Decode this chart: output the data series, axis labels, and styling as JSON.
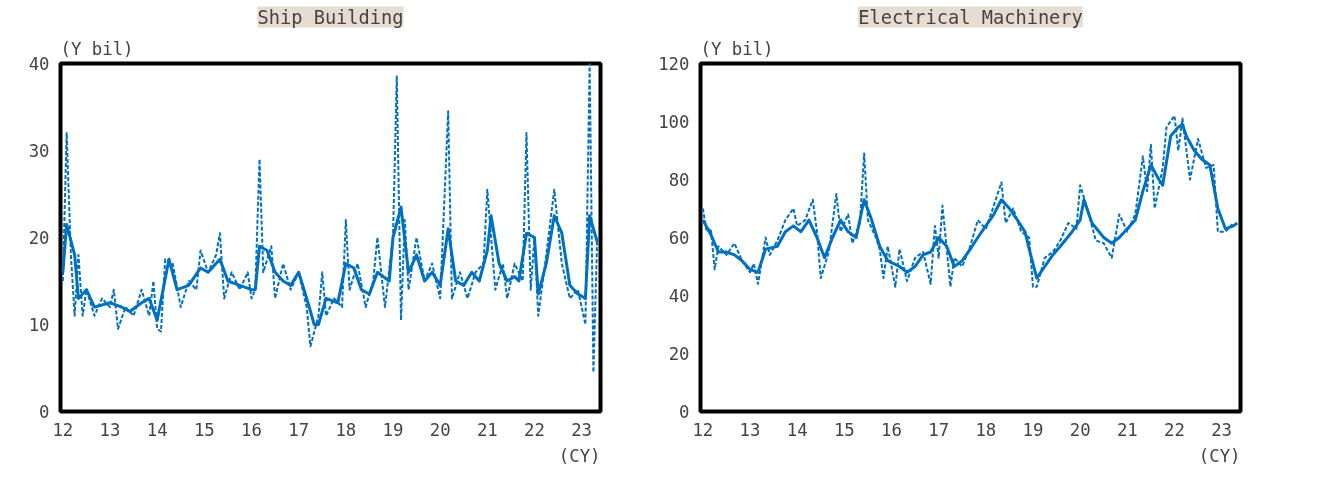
{
  "chart_data": [
    {
      "type": "line",
      "title": "Ship Building",
      "ylabel": "(Y bil)",
      "xlabel": "(CY)",
      "xlim": [
        11.95,
        23.4
      ],
      "xticks": [
        12,
        13,
        14,
        15,
        16,
        17,
        18,
        19,
        20,
        21,
        22,
        23
      ],
      "ylim": [
        0,
        40
      ],
      "yticks": [
        0,
        10,
        20,
        30,
        40
      ],
      "grid": false,
      "series": [
        {
          "color": "#0070c0",
          "line_style": "dashed",
          "x": [
            12.0,
            12.08,
            12.17,
            12.25,
            12.33,
            12.42,
            12.5,
            12.67,
            12.83,
            13.0,
            13.08,
            13.17,
            13.33,
            13.5,
            13.67,
            13.83,
            13.92,
            14.0,
            14.08,
            14.17,
            14.33,
            14.5,
            14.67,
            14.83,
            14.92,
            15.08,
            15.25,
            15.33,
            15.42,
            15.58,
            15.75,
            15.92,
            16.0,
            16.08,
            16.17,
            16.25,
            16.42,
            16.5,
            16.67,
            16.83,
            17.0,
            17.17,
            17.25,
            17.42,
            17.5,
            17.58,
            17.75,
            17.92,
            18.0,
            18.08,
            18.25,
            18.42,
            18.58,
            18.67,
            18.83,
            19.0,
            19.08,
            19.17,
            19.25,
            19.33,
            19.5,
            19.67,
            19.83,
            20.0,
            20.17,
            20.25,
            20.42,
            20.58,
            20.75,
            20.92,
            21.0,
            21.17,
            21.33,
            21.42,
            21.58,
            21.75,
            21.83,
            21.92,
            22.0,
            22.08,
            22.25,
            22.42,
            22.58,
            22.75,
            22.92,
            23.08,
            23.17,
            23.25,
            23.33
          ],
          "values": [
            15,
            32,
            18,
            11,
            18,
            11,
            14,
            11,
            13,
            12,
            14,
            9.5,
            12,
            11,
            14,
            11,
            15,
            9.5,
            9.2,
            17.5,
            17,
            12,
            15,
            14,
            18.5,
            16,
            18,
            20.5,
            13,
            16,
            14,
            16,
            13,
            14,
            29,
            16,
            19,
            13,
            17,
            14,
            16,
            12,
            7.5,
            11,
            16,
            11,
            13,
            12,
            22,
            14,
            17,
            12,
            15,
            20,
            12,
            20,
            38.5,
            10.5,
            22,
            14,
            20,
            15,
            17,
            13,
            34.5,
            13,
            16,
            13,
            16,
            17,
            25.5,
            14,
            17,
            13,
            17,
            15,
            32,
            14,
            20,
            11,
            18,
            25.5,
            17,
            13,
            14,
            10,
            40,
            4.5,
            20
          ]
        },
        {
          "color": "#0070c0",
          "line_style": "solid",
          "x": [
            12.0,
            12.08,
            12.25,
            12.33,
            12.5,
            12.67,
            13.0,
            13.25,
            13.42,
            13.67,
            13.83,
            14.0,
            14.25,
            14.42,
            14.67,
            14.92,
            15.08,
            15.33,
            15.5,
            15.75,
            16.0,
            16.08,
            16.17,
            16.33,
            16.5,
            16.67,
            16.83,
            17.0,
            17.17,
            17.33,
            17.42,
            17.58,
            17.83,
            18.0,
            18.17,
            18.33,
            18.5,
            18.67,
            18.92,
            19.0,
            19.17,
            19.33,
            19.5,
            19.67,
            19.83,
            20.0,
            20.17,
            20.33,
            20.5,
            20.67,
            20.83,
            21.0,
            21.08,
            21.25,
            21.42,
            21.58,
            21.67,
            21.83,
            22.0,
            22.08,
            22.25,
            22.42,
            22.58,
            22.75,
            22.92,
            23.08,
            23.17,
            23.33
          ],
          "values": [
            16,
            21.5,
            18,
            13,
            14,
            12,
            12.5,
            12,
            11.5,
            12.5,
            13,
            10.5,
            17.5,
            14,
            14.5,
            16.5,
            16,
            17.5,
            15,
            14.5,
            14,
            14,
            19,
            18.5,
            16,
            15,
            14.5,
            16,
            13,
            10,
            10,
            13,
            12.5,
            17,
            16.5,
            14,
            13.5,
            16,
            15,
            20,
            23.5,
            16,
            18,
            15,
            16,
            14.5,
            21,
            15,
            14.5,
            16,
            15,
            18.5,
            22.5,
            17,
            15,
            15.5,
            15,
            20.5,
            20,
            13.5,
            17,
            22.5,
            20.5,
            14.5,
            13.5,
            13,
            22.5,
            19.5
          ]
        }
      ]
    },
    {
      "type": "line",
      "title": "Electrical Machinery",
      "ylabel": "(Y bil)",
      "xlabel": "(CY)",
      "xlim": [
        11.95,
        23.4
      ],
      "xticks": [
        12,
        13,
        14,
        15,
        16,
        17,
        18,
        19,
        20,
        21,
        22,
        23
      ],
      "ylim": [
        0,
        120
      ],
      "yticks": [
        0,
        20,
        40,
        60,
        80,
        100,
        120
      ],
      "grid": false,
      "series": [
        {
          "color": "#0070c0",
          "line_style": "dashed",
          "x": [
            12.0,
            12.08,
            12.17,
            12.25,
            12.33,
            12.5,
            12.67,
            12.83,
            13.0,
            13.08,
            13.17,
            13.33,
            13.42,
            13.58,
            13.75,
            13.92,
            14.0,
            14.17,
            14.33,
            14.42,
            14.5,
            14.67,
            14.83,
            14.92,
            15.08,
            15.17,
            15.33,
            15.42,
            15.5,
            15.67,
            15.75,
            15.83,
            15.92,
            16.08,
            16.17,
            16.33,
            16.5,
            16.67,
            16.83,
            16.92,
            17.0,
            17.08,
            17.25,
            17.33,
            17.5,
            17.67,
            17.83,
            18.0,
            18.17,
            18.33,
            18.42,
            18.58,
            18.75,
            18.92,
            19.0,
            19.08,
            19.25,
            19.42,
            19.58,
            19.75,
            19.92,
            20.0,
            20.17,
            20.33,
            20.5,
            20.67,
            20.83,
            21.0,
            21.17,
            21.33,
            21.42,
            21.5,
            21.58,
            21.75,
            21.83,
            22.0,
            22.08,
            22.17,
            22.33,
            22.5,
            22.67,
            22.83,
            22.92,
            23.08,
            23.25
          ],
          "values": [
            70,
            62,
            63,
            49,
            57,
            54,
            58,
            52,
            48,
            51,
            44,
            60,
            54,
            59,
            66,
            70,
            64,
            66,
            73,
            62,
            46,
            55,
            75,
            62,
            68,
            58,
            65,
            89,
            66,
            60,
            56,
            46,
            57,
            43,
            56,
            45,
            53,
            55,
            44,
            64,
            53,
            71,
            43,
            53,
            50,
            57,
            66,
            63,
            71,
            79,
            65,
            70,
            62,
            60,
            43,
            43,
            53,
            55,
            59,
            65,
            63,
            78,
            69,
            59,
            58,
            53,
            68,
            62,
            68,
            88,
            76,
            92,
            70,
            84,
            98,
            102,
            90,
            101,
            80,
            94,
            84,
            85,
            62,
            62,
            65
          ]
        },
        {
          "color": "#0070c0",
          "line_style": "solid",
          "x": [
            12.0,
            12.17,
            12.33,
            12.5,
            12.67,
            12.83,
            13.0,
            13.17,
            13.33,
            13.58,
            13.75,
            13.92,
            14.08,
            14.25,
            14.42,
            14.58,
            14.75,
            14.92,
            15.08,
            15.25,
            15.42,
            15.58,
            15.75,
            15.92,
            16.17,
            16.33,
            16.5,
            16.67,
            16.83,
            17.0,
            17.17,
            17.33,
            17.5,
            17.67,
            17.83,
            18.0,
            18.17,
            18.33,
            18.5,
            18.67,
            18.83,
            18.92,
            19.08,
            19.25,
            19.42,
            19.58,
            19.83,
            20.0,
            20.08,
            20.25,
            20.5,
            20.67,
            20.83,
            21.0,
            21.17,
            21.33,
            21.5,
            21.67,
            21.75,
            21.92,
            22.08,
            22.17,
            22.25,
            22.42,
            22.58,
            22.75,
            22.92,
            23.08,
            23.25,
            23.33
          ],
          "values": [
            66,
            61,
            55,
            55,
            54,
            52,
            49,
            48,
            56,
            57,
            62,
            64,
            62,
            66,
            60,
            53,
            60,
            66,
            62,
            60,
            73,
            66,
            57,
            52,
            50,
            48,
            50,
            54,
            55,
            60,
            57,
            50,
            52,
            56,
            60,
            64,
            68,
            73,
            70,
            66,
            62,
            56,
            46,
            50,
            54,
            57,
            62,
            66,
            73,
            65,
            60,
            58,
            60,
            63,
            66,
            76,
            85,
            80,
            78,
            95,
            98,
            99,
            95,
            90,
            87,
            85,
            70,
            63,
            64,
            65
          ]
        }
      ]
    }
  ]
}
